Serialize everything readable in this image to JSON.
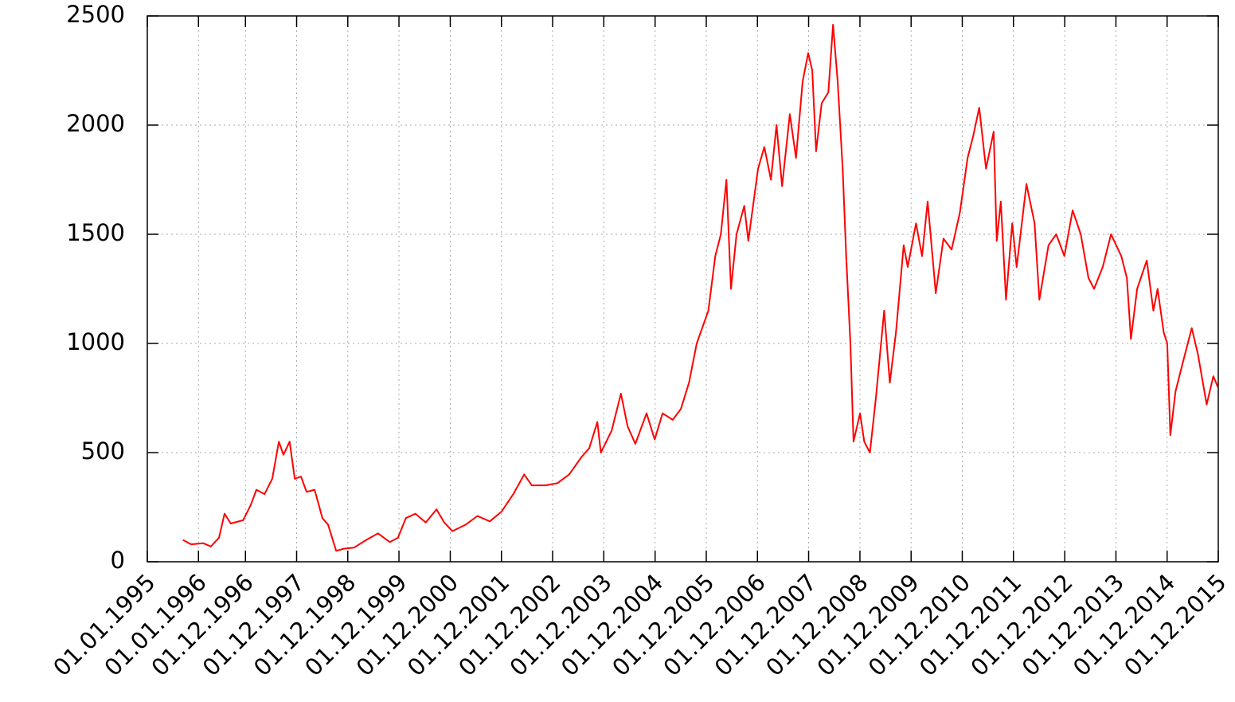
{
  "chart_data": {
    "type": "line",
    "x": [
      "1995-09-12",
      "1995-11-10",
      "1996-02-03",
      "1996-03-29",
      "1996-05-26",
      "1996-07-05",
      "1996-08-18",
      "1996-11-14",
      "1997-01-08",
      "1997-02-17",
      "1997-04-16",
      "1997-06-10",
      "1997-07-27",
      "1997-08-29",
      "1997-10-12",
      "1997-11-18",
      "1998-01-01",
      "1998-02-10",
      "1998-04-08",
      "1998-06-03",
      "1998-07-13",
      "1998-09-09",
      "1998-11-03",
      "1999-01-15",
      "1999-04-12",
      "1999-07-05",
      "1999-09-27",
      "1999-11-24",
      "2000-01-19",
      "2000-03-28",
      "2000-06-09",
      "2000-08-25",
      "2000-10-19",
      "2000-12-16",
      "2001-03-21",
      "2001-06-13",
      "2001-09-09",
      "2001-12-02",
      "2002-02-24",
      "2002-05-12",
      "2002-07-05",
      "2002-10-12",
      "2003-01-04",
      "2003-03-29",
      "2003-06-25",
      "2003-08-19",
      "2003-10-16",
      "2003-11-10",
      "2004-01-26",
      "2004-04-01",
      "2004-05-19",
      "2004-07-13",
      "2004-10-01",
      "2004-11-28",
      "2005-01-23",
      "2005-04-06",
      "2005-06-03",
      "2005-07-31",
      "2005-09-24",
      "2005-12-16",
      "2006-02-03",
      "2006-03-15",
      "2006-04-24",
      "2006-05-26",
      "2006-07-05",
      "2006-08-29",
      "2006-09-27",
      "2006-12-05",
      "2007-01-19",
      "2007-03-07",
      "2007-04-16",
      "2007-05-26",
      "2007-07-20",
      "2007-09-02",
      "2007-10-19",
      "2007-11-28",
      "2007-12-27",
      "2008-01-23",
      "2008-03-03",
      "2008-04-20",
      "2008-05-23",
      "2008-06-25",
      "2008-07-31",
      "2008-08-25",
      "2008-09-24",
      "2008-10-16",
      "2008-12-02",
      "2009-01-01",
      "2009-02-10",
      "2009-03-25",
      "2009-05-23",
      "2009-07-02",
      "2009-08-15",
      "2009-10-09",
      "2009-11-07",
      "2010-01-05",
      "2010-02-17",
      "2010-03-29",
      "2010-05-26",
      "2010-07-20",
      "2010-09-16",
      "2010-11-14",
      "2011-01-08",
      "2011-02-17",
      "2011-04-01",
      "2011-05-19",
      "2011-07-13",
      "2011-08-04",
      "2011-09-02",
      "2011-10-09",
      "2011-11-22",
      "2011-12-24",
      "2012-03-03",
      "2012-04-30",
      "2012-06-03",
      "2012-08-07",
      "2012-10-01",
      "2012-11-28",
      "2013-01-26",
      "2013-03-25",
      "2013-05-19",
      "2013-06-28",
      "2013-08-29",
      "2013-10-27",
      "2014-01-08",
      "2014-02-17",
      "2014-03-18",
      "2014-05-01",
      "2014-07-09",
      "2014-08-25",
      "2014-09-24",
      "2014-11-07",
      "2014-12-02",
      "2014-12-24",
      "2015-01-30",
      "2015-03-18",
      "2015-05-26",
      "2015-07-09",
      "2015-09-09",
      "2015-10-27",
      "2015-11-28"
    ],
    "series": [
      {
        "color": "#ff0000",
        "values": [
          100,
          80,
          85,
          70,
          110,
          220,
          175,
          190,
          260,
          330,
          310,
          380,
          550,
          490,
          550,
          380,
          390,
          320,
          330,
          200,
          170,
          50,
          60,
          65,
          100,
          130,
          90,
          110,
          200,
          220,
          180,
          240,
          180,
          140,
          170,
          210,
          185,
          230,
          310,
          400,
          350,
          350,
          360,
          400,
          480,
          520,
          640,
          500,
          600,
          770,
          620,
          540,
          680,
          560,
          680,
          650,
          700,
          820,
          1000,
          1150,
          1400,
          1500,
          1750,
          1250,
          1500,
          1630,
          1470,
          1800,
          1900,
          1750,
          2000,
          1720,
          2050,
          1850,
          2200,
          2330,
          2250,
          1880,
          2100,
          2150,
          2460,
          2200,
          1800,
          1400,
          1000,
          550,
          680,
          550,
          500,
          750,
          1150,
          820,
          1050,
          1450,
          1350,
          1550,
          1400,
          1650,
          1230,
          1480,
          1430,
          1600,
          1850,
          1950,
          2080,
          1800,
          1970,
          1470,
          1650,
          1200,
          1550,
          1350,
          1730,
          1550,
          1200,
          1450,
          1500,
          1400,
          1610,
          1500,
          1300,
          1250,
          1350,
          1500,
          1400,
          1300,
          1020,
          1250,
          1380,
          1150,
          1250,
          1050,
          1000,
          580,
          780,
          900,
          1070,
          950,
          720,
          850,
          800
        ]
      }
    ],
    "xlim": [
      "1995-01-01",
      "2015-12-01"
    ],
    "xticks": [
      {
        "value": "1995-01-01",
        "label": "01.01.1995"
      },
      {
        "value": "1996-01-01",
        "label": "01.01.1996"
      },
      {
        "value": "1996-12-01",
        "label": "01.12.1996"
      },
      {
        "value": "1997-12-01",
        "label": "01.12.1997"
      },
      {
        "value": "1998-12-01",
        "label": "01.12.1998"
      },
      {
        "value": "1999-12-01",
        "label": "01.12.1999"
      },
      {
        "value": "2000-12-01",
        "label": "01.12.2000"
      },
      {
        "value": "2001-12-01",
        "label": "01.12.2001"
      },
      {
        "value": "2002-12-01",
        "label": "01.12.2002"
      },
      {
        "value": "2003-12-01",
        "label": "01.12.2003"
      },
      {
        "value": "2004-12-01",
        "label": "01.12.2004"
      },
      {
        "value": "2005-12-01",
        "label": "01.12.2005"
      },
      {
        "value": "2006-12-01",
        "label": "01.12.2006"
      },
      {
        "value": "2007-12-01",
        "label": "01.12.2007"
      },
      {
        "value": "2008-12-01",
        "label": "01.12.2008"
      },
      {
        "value": "2009-12-01",
        "label": "01.12.2009"
      },
      {
        "value": "2010-12-01",
        "label": "01.12.2010"
      },
      {
        "value": "2011-12-01",
        "label": "01.12.2011"
      },
      {
        "value": "2012-12-01",
        "label": "01.12.2012"
      },
      {
        "value": "2013-12-01",
        "label": "01.12.2013"
      },
      {
        "value": "2014-12-01",
        "label": "01.12.2014"
      },
      {
        "value": "2015-12-01",
        "label": "01.12.2015"
      }
    ],
    "ylim": [
      0,
      2500
    ],
    "yticks": [
      0,
      500,
      1000,
      1500,
      2000,
      2500
    ],
    "grid": true
  }
}
